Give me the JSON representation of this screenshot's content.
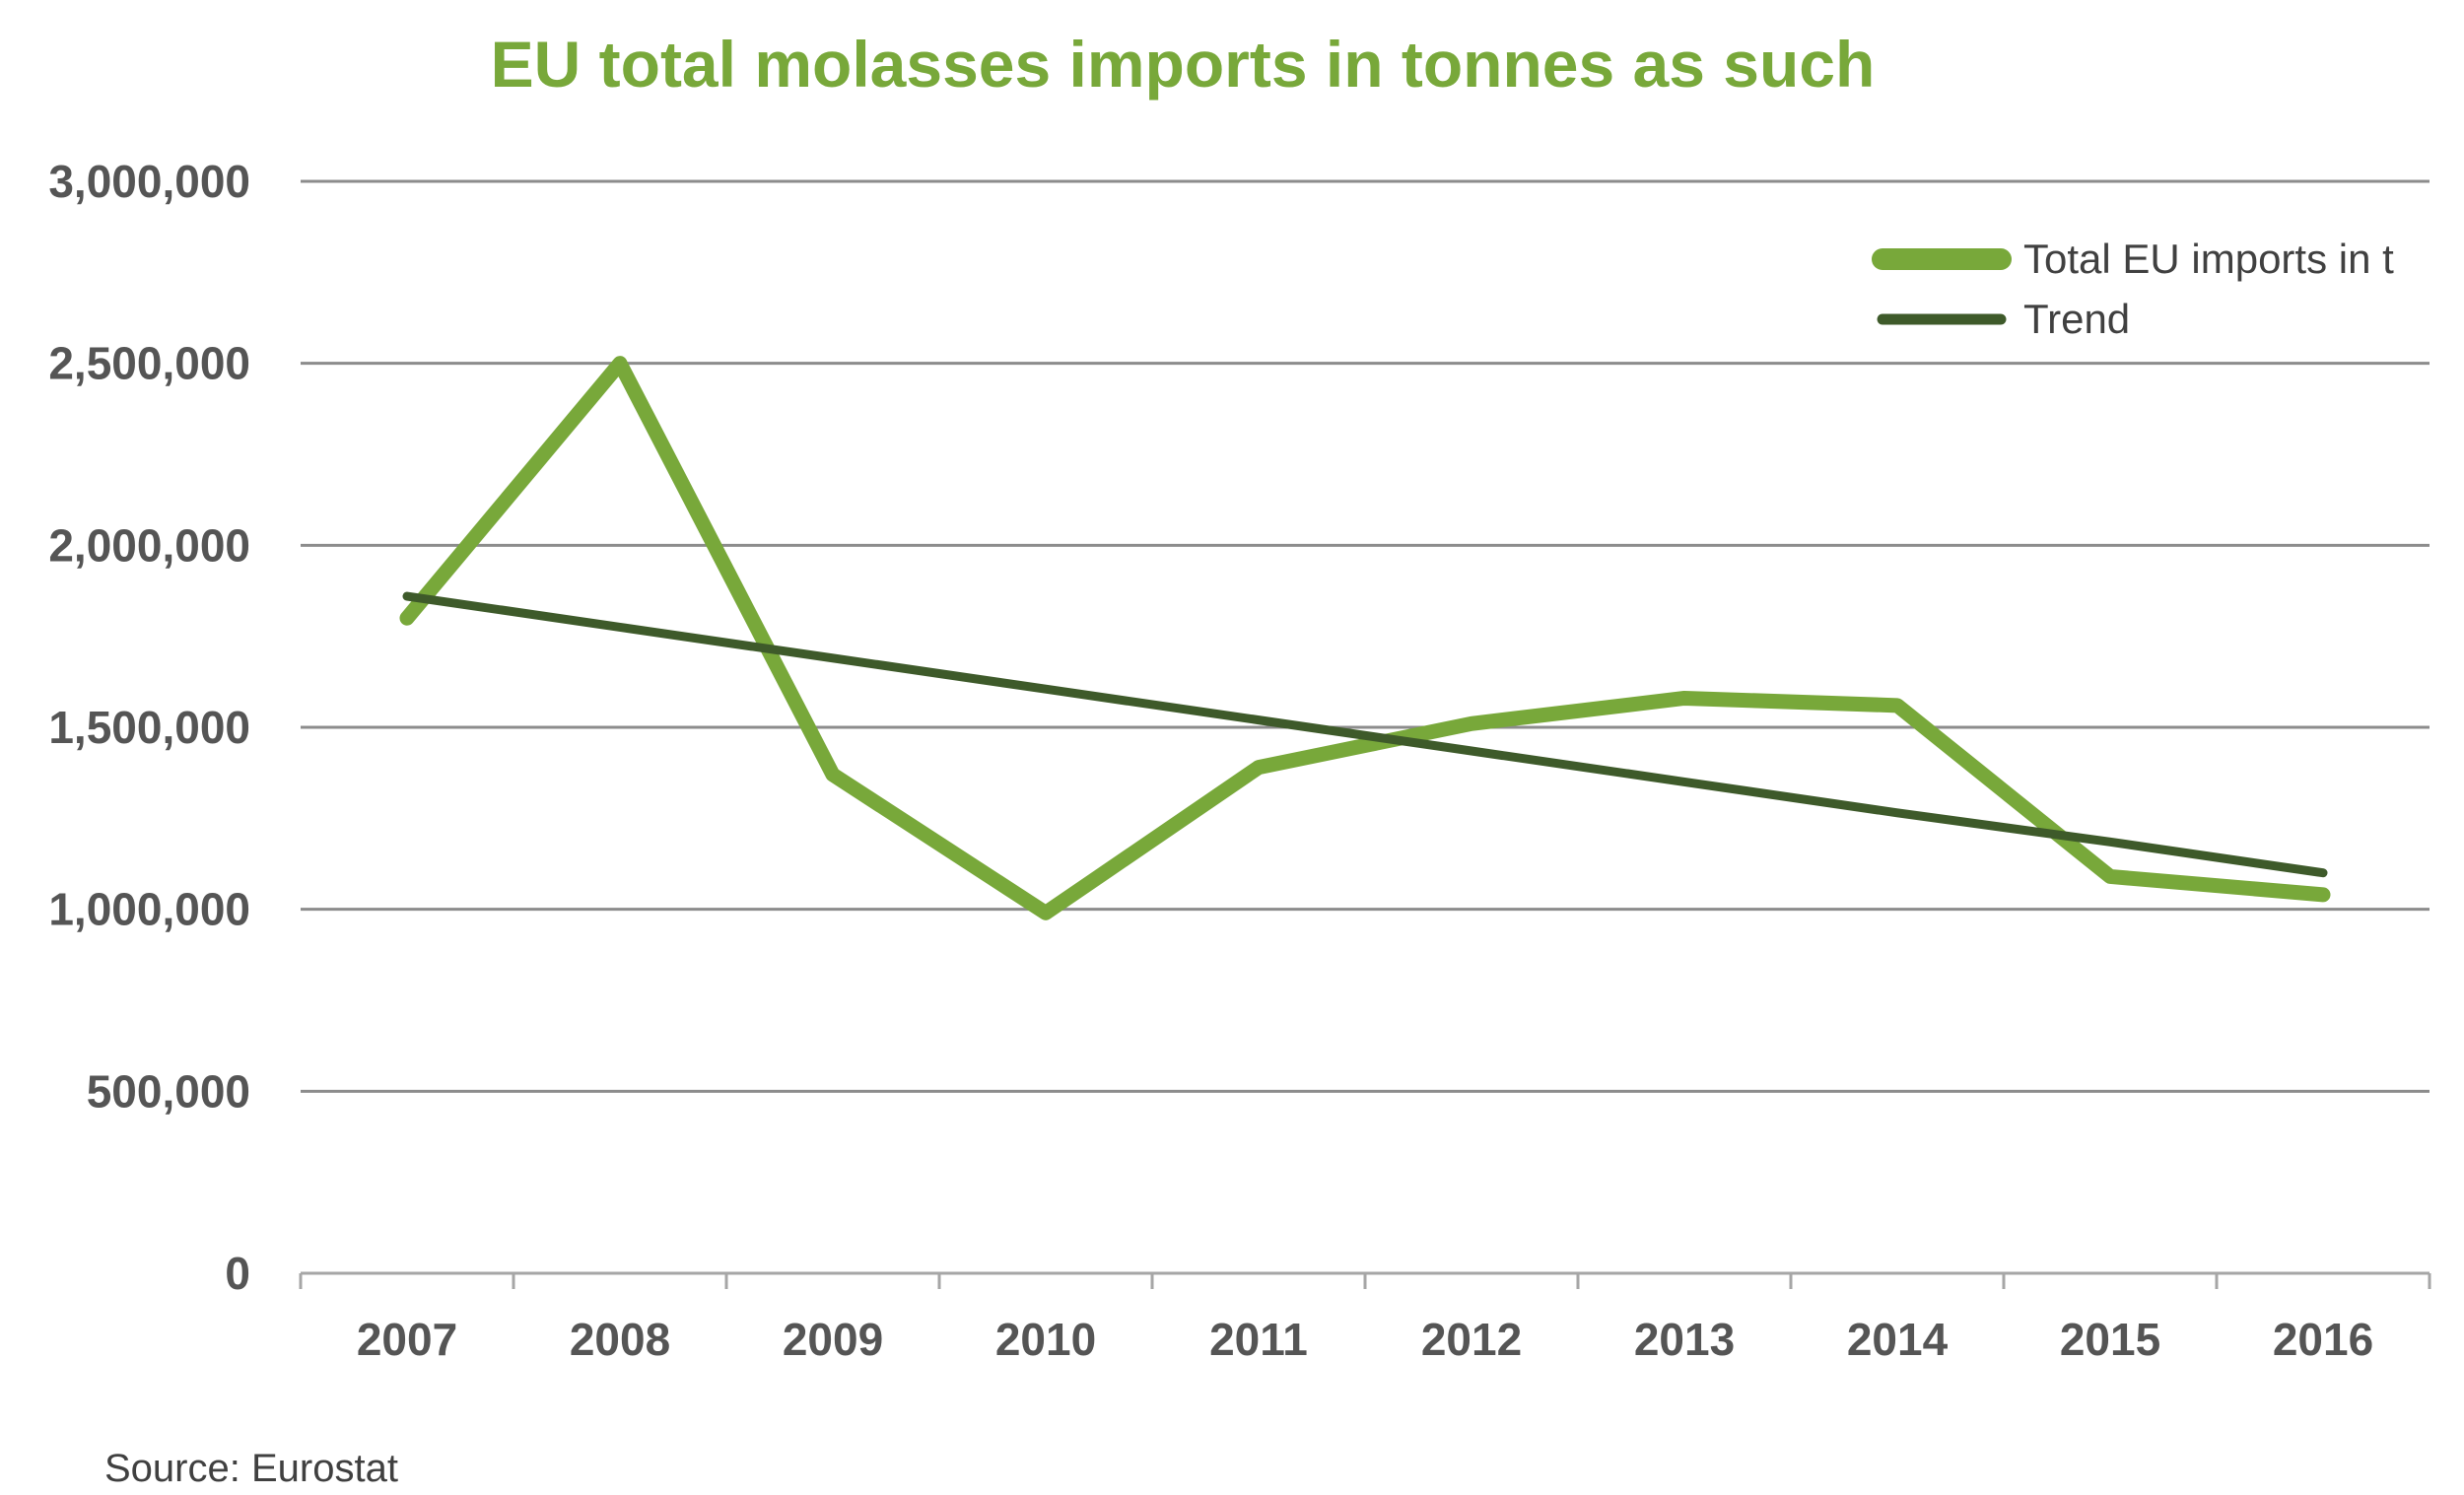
{
  "colors": {
    "title": "#78a83a",
    "primary_series": "#78a83a",
    "trend_series": "#3e5a2a",
    "gridline": "#8c8c8c",
    "axis": "#a6a6a6",
    "tick_text": "#555555"
  },
  "footer": {
    "source": "Source: Eurostat"
  },
  "chart_data": {
    "type": "line",
    "title": "EU total molasses imports in tonnes as such",
    "xlabel": "",
    "ylabel": "",
    "categories": [
      "2007",
      "2008",
      "2009",
      "2010",
      "2011",
      "2012",
      "2013",
      "2014",
      "2015",
      "2016"
    ],
    "y_ticks": [
      0,
      500000,
      1000000,
      1500000,
      2000000,
      2500000,
      3000000
    ],
    "y_tick_labels": [
      "0",
      "500,000",
      "1,000,000",
      "1,500,000",
      "2,000,000",
      "2,500,000",
      "3,000,000"
    ],
    "ylim": [
      0,
      3000000
    ],
    "grid": true,
    "legend_position": "top-right",
    "series": [
      {
        "name": "Total EU imports in t",
        "values": [
          1800000,
          2500000,
          1370000,
          990000,
          1390000,
          1510000,
          1580000,
          1560000,
          1090000,
          1040000
        ]
      },
      {
        "name": "Trend",
        "values": [
          1860000,
          1775000,
          1690000,
          1605000,
          1520000,
          1435000,
          1350000,
          1265000,
          1185000,
          1100000
        ]
      }
    ]
  }
}
